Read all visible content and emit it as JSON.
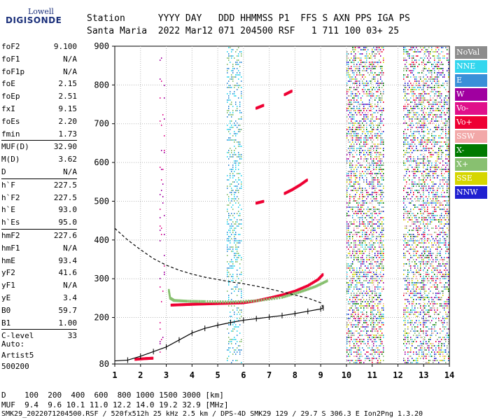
{
  "logo": {
    "line1": "Lowell",
    "line2": "DIGISONDE"
  },
  "header": {
    "line1": "Station      YYYY DAY   DDD HHMMSS P1  FFS S AXN PPS IGA PS",
    "line2": "Santa Maria  2022 Mar12 071 204500 RSF   1 711 100 03+ 25"
  },
  "params": [
    {
      "group": [
        {
          "k": "foF2",
          "v": "9.100"
        },
        {
          "k": "foF1",
          "v": "N/A"
        },
        {
          "k": "foF1p",
          "v": "N/A"
        },
        {
          "k": "foE",
          "v": "2.15"
        },
        {
          "k": "foEp",
          "v": "2.51"
        },
        {
          "k": "fxI",
          "v": "9.15"
        },
        {
          "k": "foEs",
          "v": "2.20"
        },
        {
          "k": "fmin",
          "v": "1.73"
        }
      ]
    },
    {
      "group": [
        {
          "k": "MUF(D)",
          "v": "32.90"
        },
        {
          "k": "M(D)",
          "v": "3.62"
        },
        {
          "k": "D",
          "v": "N/A"
        }
      ]
    },
    {
      "group": [
        {
          "k": "h`F",
          "v": "227.5"
        },
        {
          "k": "h`F2",
          "v": "227.5"
        },
        {
          "k": "h`E",
          "v": "93.0"
        },
        {
          "k": "h`Es",
          "v": "95.0"
        }
      ]
    },
    {
      "group": [
        {
          "k": "hmF2",
          "v": "227.6"
        },
        {
          "k": "hmF1",
          "v": "N/A"
        },
        {
          "k": "hmE",
          "v": "93.4"
        },
        {
          "k": "yF2",
          "v": "41.6"
        },
        {
          "k": "yF1",
          "v": "N/A"
        },
        {
          "k": "yE",
          "v": "3.4"
        },
        {
          "k": "B0",
          "v": "59.7"
        },
        {
          "k": "B1",
          "v": "1.00"
        }
      ]
    },
    {
      "group": [
        {
          "k": "C-level",
          "v": "33"
        }
      ]
    }
  ],
  "auto": {
    "l1": "Auto:",
    "l2": "Artist5",
    "l3": "500200"
  },
  "legend": [
    {
      "label": "NoVal",
      "bg": "#8c8c8c",
      "fg": "#ffffff"
    },
    {
      "label": "NNE",
      "bg": "#33d6ee",
      "fg": "#ffffff"
    },
    {
      "label": "E",
      "bg": "#3a8fd8",
      "fg": "#ffffff"
    },
    {
      "label": "W",
      "bg": "#a000a0",
      "fg": "#ffffff"
    },
    {
      "label": "Vo-",
      "bg": "#e0108a",
      "fg": "#ffffff"
    },
    {
      "label": "Vo+",
      "bg": "#ee0033",
      "fg": "#ffffff"
    },
    {
      "label": "SSW",
      "bg": "#f2a8a8",
      "fg": "#ffffff"
    },
    {
      "label": "X-",
      "bg": "#007a00",
      "fg": "#ffffff"
    },
    {
      "label": "X+",
      "bg": "#88c070",
      "fg": "#ffffff"
    },
    {
      "label": "SSE",
      "bg": "#d6d600",
      "fg": "#ffffff"
    },
    {
      "label": "NNW",
      "bg": "#2020d0",
      "fg": "#ffffff"
    }
  ],
  "bottom": {
    "l1": "D    100  200  400  600  800 1000 1500 3000 [km]",
    "l2": "MUF  9.4  9.6 10.1 11.0 12.2 14.0 19.2 32.9 [MHz]"
  },
  "footer": "SMK29_2022071204500.RSF / 520fx512h 25 kHz 2.5 km / DPS-4D SMK29 129 / 29.7 S 306.3 E Ion2Png 1.3.20",
  "chart_data": {
    "type": "scatter",
    "xlim": [
      1,
      14
    ],
    "ylim": [
      80,
      900
    ],
    "x_ticks": [
      1,
      2,
      3,
      4,
      5,
      6,
      7,
      8,
      9,
      10,
      11,
      12,
      13,
      14
    ],
    "y_ticks": [
      80,
      200,
      300,
      400,
      500,
      600,
      700,
      800,
      900
    ],
    "grid": true,
    "series": [
      {
        "name": "Vo+",
        "color": "#ee0033",
        "x": [
          3.2,
          3.6,
          4.0,
          4.5,
          5.0,
          5.5,
          6.0,
          6.5,
          7.0,
          7.5,
          8.0,
          8.5,
          8.9,
          9.1
        ],
        "y": [
          232,
          233,
          234,
          235,
          236,
          237,
          238,
          243,
          250,
          258,
          268,
          282,
          298,
          312
        ]
      },
      {
        "name": "X+",
        "color": "#88c070",
        "x": [
          3.1,
          3.15,
          3.3,
          3.8,
          4.5,
          5.5,
          6.5,
          7.5,
          8.2,
          8.8,
          9.3
        ],
        "y": [
          270,
          250,
          244,
          242,
          241,
          240,
          243,
          252,
          266,
          280,
          296
        ]
      },
      {
        "name": "Vo+",
        "color": "#ee0033",
        "x": [
          1.8,
          2.2,
          2.5
        ],
        "y": [
          92,
          94,
          95
        ]
      },
      {
        "name": "Vo+",
        "color": "#ee0033",
        "x": [
          7.6,
          7.9,
          8.2,
          8.5
        ],
        "y": [
          520,
          530,
          542,
          556
        ]
      },
      {
        "name": "Vo+",
        "color": "#ee0033",
        "x": [
          6.5,
          6.8
        ],
        "y": [
          495,
          500
        ]
      },
      {
        "name": "Vo+",
        "color": "#ee0033",
        "x": [
          6.5,
          6.8
        ],
        "y": [
          740,
          748
        ]
      },
      {
        "name": "Vo+",
        "color": "#ee0033",
        "x": [
          7.6,
          7.9
        ],
        "y": [
          775,
          785
        ]
      }
    ],
    "profile": {
      "x": [
        1.0,
        1.5,
        2.0,
        2.5,
        3.0,
        3.5,
        4.0,
        4.5,
        5.0,
        5.5,
        6.0,
        6.5,
        7.0,
        7.5,
        8.0,
        8.5,
        9.0,
        9.1
      ],
      "y": [
        88,
        90,
        100,
        112,
        124,
        142,
        160,
        172,
        180,
        187,
        193,
        197,
        201,
        205,
        210,
        216,
        222,
        225
      ]
    },
    "virtual_height": {
      "x": [
        1.0,
        1.5,
        2.0,
        2.5,
        3.0,
        3.5,
        4.0,
        4.5,
        5.0,
        5.5,
        6.0,
        6.5,
        7.0,
        7.5,
        8.0,
        8.5,
        9.0,
        9.1
      ],
      "y": [
        430,
        400,
        375,
        352,
        335,
        322,
        312,
        304,
        298,
        292,
        287,
        281,
        274,
        266,
        258,
        250,
        238,
        225
      ]
    }
  }
}
